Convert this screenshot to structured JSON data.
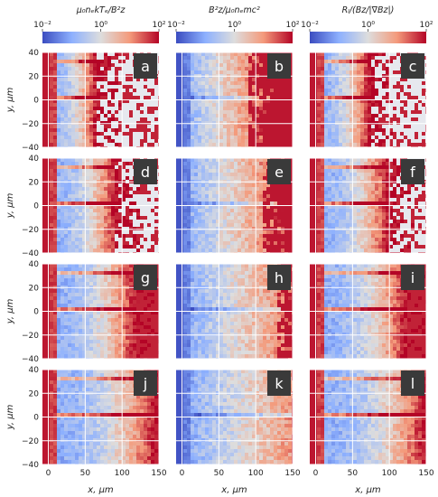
{
  "chart_data": {
    "type": "heatmap",
    "colormap": "coolwarm",
    "colorbars": [
      {
        "title": "μ₀nₑkTₑ/B²z",
        "scale": "log",
        "range": [
          0.01,
          100
        ],
        "ticks": [
          "10⁻²",
          "10⁰",
          "10²"
        ]
      },
      {
        "title": "B²z/μ₀nₑmc²",
        "scale": "log",
        "range": [
          0.01,
          100
        ],
        "ticks": [
          "10⁻²",
          "10⁰",
          "10²"
        ]
      },
      {
        "title": "Rₗ/(Bz/|∇Bz|)",
        "scale": "log",
        "range": [
          0.01,
          100
        ],
        "ticks": [
          "10⁻²",
          "10⁰",
          "10²"
        ]
      }
    ],
    "xlabel": "x, μm",
    "ylabel": "y, μm",
    "x_ticks": [
      "0",
      "50",
      "100",
      "150"
    ],
    "y_ticks": [
      "40",
      "20",
      "0",
      "−20",
      "−40"
    ],
    "x_range": [
      -8,
      150
    ],
    "y_range": [
      -40,
      40
    ],
    "grid": true,
    "panel_labels": [
      "a",
      "b",
      "c",
      "d",
      "e",
      "f",
      "g",
      "h",
      "i",
      "j",
      "k",
      "l"
    ],
    "grid_rows": 4,
    "grid_cols": 3
  },
  "colors": {
    "low": "#3b4cc0",
    "mid": "#dddddd",
    "high": "#b40426",
    "background": "#e6e8ee"
  }
}
